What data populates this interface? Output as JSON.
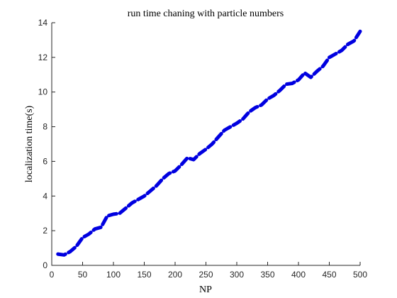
{
  "chart_data": {
    "type": "line",
    "title": "run time chaning with particle numbers",
    "xlabel": "NP",
    "ylabel": "localization time(s)",
    "xlim": [
      0,
      500
    ],
    "ylim": [
      0,
      14
    ],
    "xticks": [
      0,
      50,
      100,
      150,
      200,
      250,
      300,
      350,
      400,
      450,
      500
    ],
    "yticks": [
      0,
      2,
      4,
      6,
      8,
      10,
      12,
      14
    ],
    "grid": false,
    "series": [
      {
        "color": "#0000e0",
        "style": "dash-dot",
        "x": [
          10,
          20,
          30,
          40,
          50,
          60,
          70,
          80,
          90,
          100,
          110,
          120,
          130,
          140,
          150,
          160,
          170,
          180,
          190,
          200,
          210,
          220,
          230,
          240,
          250,
          260,
          270,
          280,
          290,
          300,
          310,
          320,
          330,
          340,
          350,
          360,
          370,
          380,
          390,
          400,
          410,
          420,
          430,
          440,
          450,
          460,
          470,
          480,
          490,
          500
        ],
        "y": [
          0.65,
          0.6,
          0.8,
          1.1,
          1.6,
          1.8,
          2.1,
          2.2,
          2.85,
          2.95,
          3.0,
          3.3,
          3.6,
          3.8,
          4.0,
          4.3,
          4.6,
          5.0,
          5.3,
          5.45,
          5.8,
          6.2,
          6.1,
          6.45,
          6.7,
          7.0,
          7.4,
          7.8,
          8.0,
          8.2,
          8.45,
          8.85,
          9.1,
          9.25,
          9.6,
          9.8,
          10.1,
          10.45,
          10.5,
          10.7,
          11.1,
          10.85,
          11.2,
          11.5,
          12.0,
          12.2,
          12.4,
          12.75,
          12.95,
          13.5
        ]
      }
    ]
  }
}
